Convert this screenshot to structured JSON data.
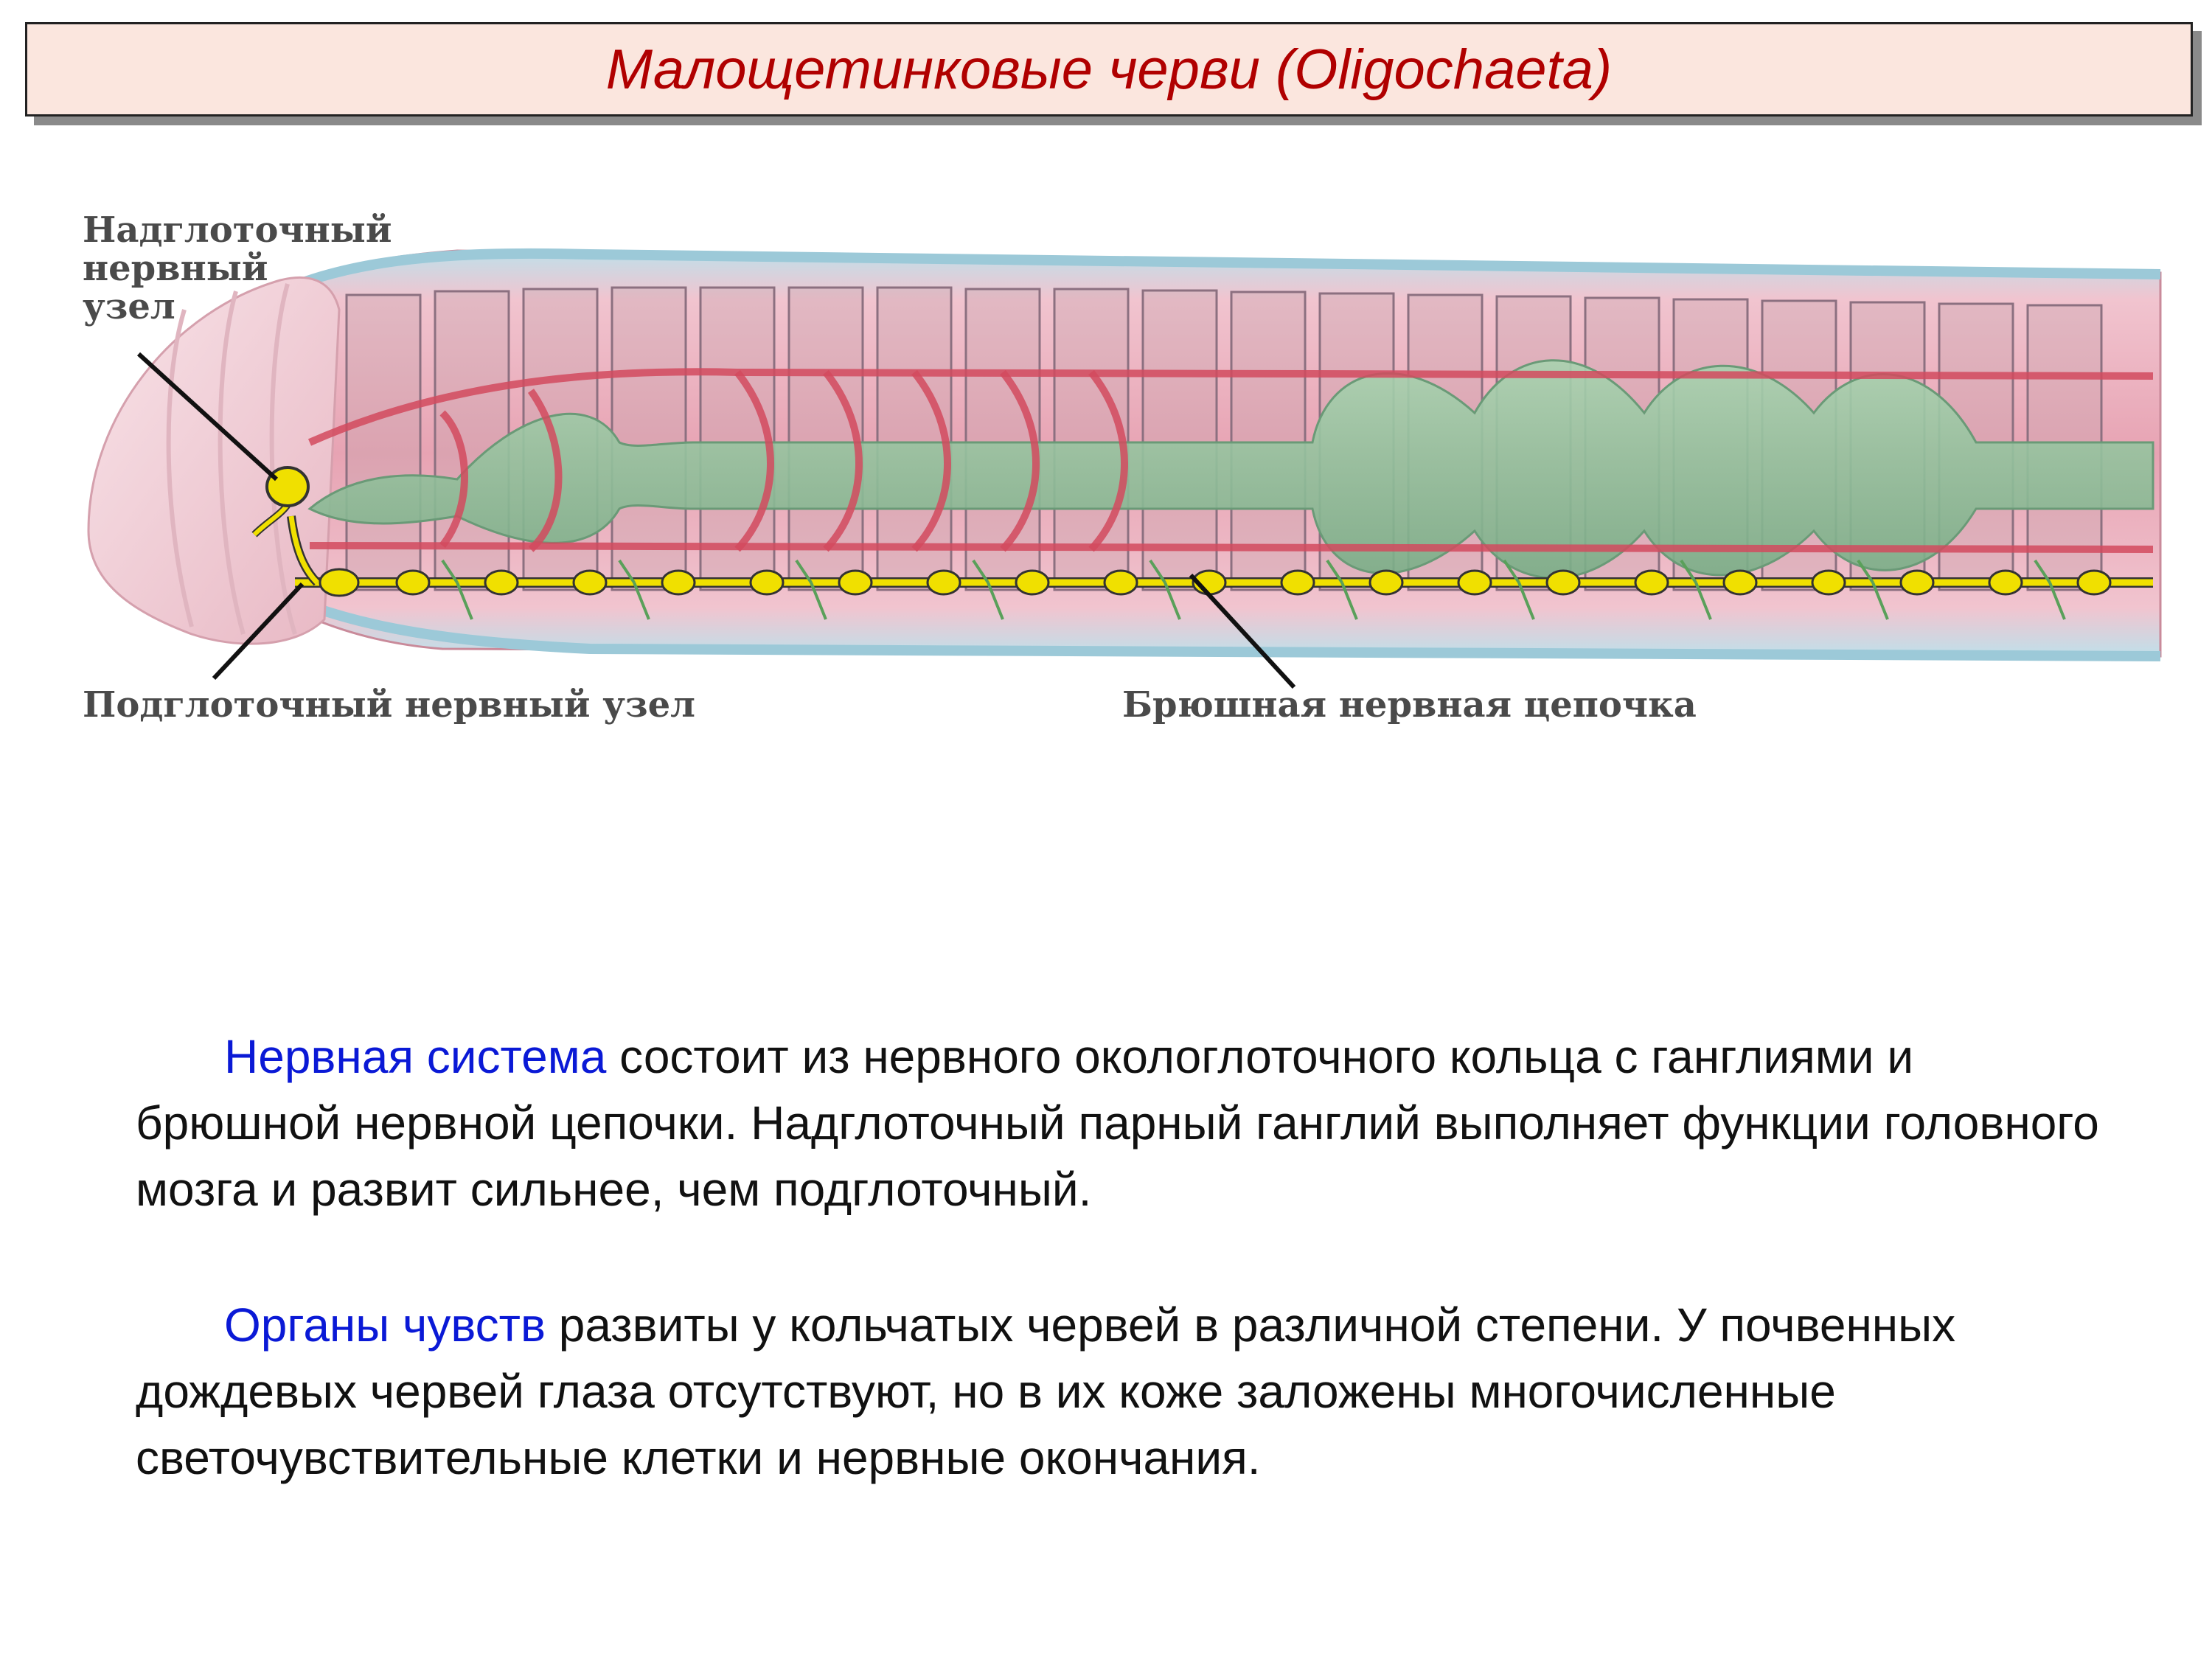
{
  "title": "Малощетинковые черви (Oligochaeta)",
  "diagram": {
    "labels": {
      "supraesophageal": [
        "Надглоточный",
        "нервный",
        "узел"
      ],
      "subesophageal": "Подглоточный нервный узел",
      "ventral_chain": "Брюшная нервная цепочка"
    }
  },
  "paragraphs": [
    {
      "term": "Нервная система",
      "text": " состоит из нервного окологлоточного кольца с ганглиями и брюшной нервной цепочки. Надглоточный парный ганглий выполняет функции головного мозга и развит сильнее, чем подглоточный."
    },
    {
      "term": "Органы чувств",
      "text": " развиты у кольчатых червей в различной степени. У почвенных дождевых червей глаза отсутствуют, но в их коже заложены многочисленные светочувствительные клетки и нервные окончания."
    }
  ],
  "colors": {
    "title_text": "#b00000",
    "title_bg": "#fbe6de",
    "term": "#0a19d6",
    "body_text": "#111111",
    "worm_body": "#e9a9b6",
    "gut": "#8fbf9a",
    "vessels": "#d24a5e",
    "nerve": "#f0e000"
  }
}
